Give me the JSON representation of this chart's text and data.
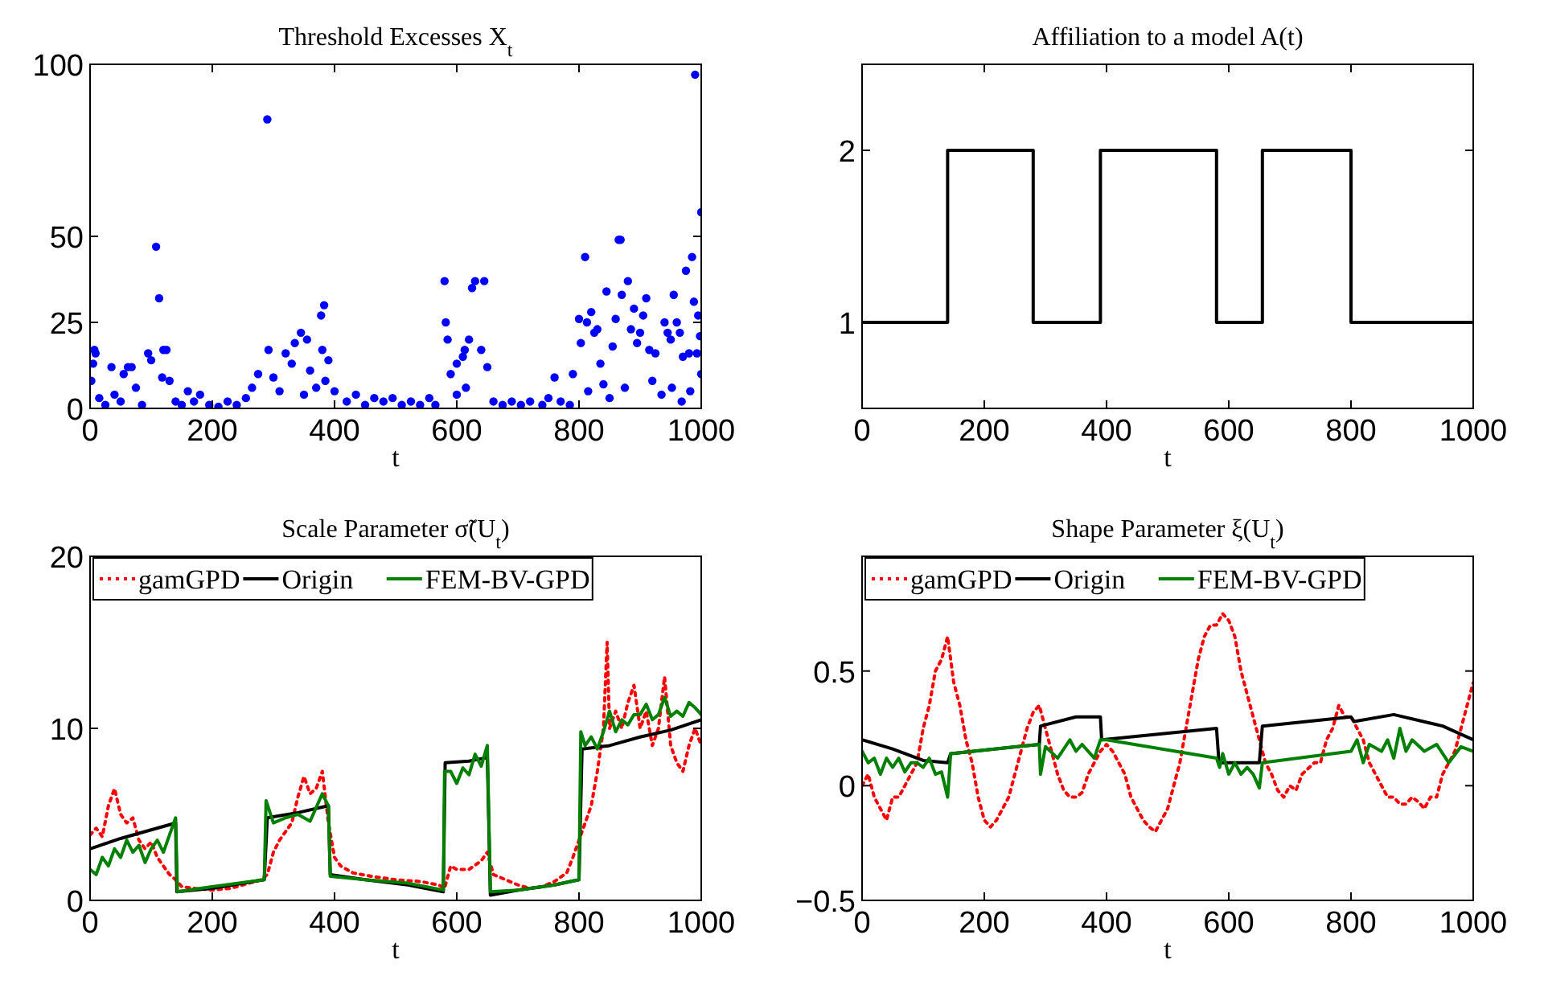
{
  "chart_data": [
    {
      "type": "scatter",
      "title": "Threshold Excesses X$_{t}$",
      "xlabel": "t",
      "xlim": [
        0,
        1000
      ],
      "xticks": [
        0,
        200,
        400,
        600,
        800,
        1000
      ],
      "ylim": [
        0,
        100
      ],
      "yticks": [
        0,
        25,
        50,
        100
      ],
      "marker": "circle",
      "series": [
        {
          "color": "#0000ff",
          "x": [
            2,
            5,
            7,
            9,
            35,
            55,
            62,
            68,
            95,
            100,
            108,
            113,
            118,
            120,
            125,
            130,
            160,
            180,
            265,
            275,
            290,
            292,
            300,
            320,
            330,
            335,
            345,
            355,
            360,
            378,
            383,
            380,
            390,
            385,
            580,
            582,
            585,
            590,
            600,
            610,
            613,
            620,
            625,
            630,
            640,
            645,
            650,
            760,
            790,
            800,
            803,
            810,
            813,
            820,
            825,
            830,
            835,
            845,
            855,
            860,
            865,
            868,
            870,
            880,
            885,
            890,
            895,
            900,
            905,
            910,
            915,
            925,
            940,
            945,
            950,
            955,
            960,
            965,
            970,
            975,
            980,
            985,
            988,
            990,
            993,
            995,
            998,
            1000,
            1000,
            15,
            25,
            40,
            50,
            75,
            85,
            140,
            150,
            170,
            195,
            210,
            225,
            240,
            255,
            310,
            350,
            370,
            400,
            420,
            435,
            450,
            465,
            480,
            495,
            510,
            525,
            540,
            555,
            565,
            600,
            615,
            660,
            675,
            690,
            705,
            720,
            740,
            750,
            770,
            785,
            815,
            840,
            850,
            875,
            920,
            935,
            952,
            968,
            982
          ],
          "values": [
            8,
            13,
            17,
            16,
            12,
            10,
            12,
            12,
            16,
            14,
            47,
            32,
            9,
            17,
            17,
            8,
            5,
            4,
            6,
            10,
            84,
            17,
            9,
            16,
            13,
            19,
            22,
            20,
            11,
            27,
            30,
            17,
            14,
            8,
            37,
            25,
            20,
            10,
            13,
            15,
            17,
            20,
            35,
            37,
            17,
            37,
            12,
            9,
            10,
            26,
            19,
            44,
            25,
            28,
            22,
            23,
            13,
            34,
            18,
            26,
            49,
            49,
            33,
            37,
            23,
            29,
            19,
            22,
            27,
            32,
            17,
            16,
            25,
            22,
            20,
            33,
            25,
            22,
            15,
            40,
            16,
            44,
            31,
            97,
            16,
            27,
            21,
            57,
            10,
            3,
            1,
            4,
            2,
            6,
            1,
            2,
            1,
            2,
            1,
            0.5,
            2,
            1,
            3,
            5,
            4,
            6,
            5,
            2,
            4,
            1,
            3,
            2,
            3,
            1,
            2,
            1,
            3,
            1,
            4,
            6,
            2,
            1,
            2,
            1,
            2,
            1,
            3,
            2,
            1,
            5,
            7,
            3,
            6,
            8,
            4,
            6,
            2,
            5
          ]
        }
      ]
    },
    {
      "type": "step",
      "title": "Affiliation to a model A(t)",
      "xlabel": "t",
      "xlim": [
        0,
        1000
      ],
      "xticks": [
        0,
        200,
        400,
        600,
        800,
        1000
      ],
      "ylim": [
        0.5,
        2.5
      ],
      "yticks": [
        1,
        2
      ],
      "series": [
        {
          "color": "#000000",
          "x": [
            0,
            140,
            280,
            390,
            580,
            655,
            800,
            1000
          ],
          "values": [
            1,
            2,
            1,
            2,
            1,
            2,
            1,
            1
          ]
        }
      ]
    },
    {
      "type": "line",
      "title": "Scale Parameter σ̃(U$_{t}$)",
      "xlabel": "t",
      "xlim": [
        0,
        1000
      ],
      "xticks": [
        0,
        200,
        400,
        600,
        800,
        1000
      ],
      "ylim": [
        0,
        20
      ],
      "yticks": [
        0,
        10,
        20
      ],
      "legend": "top",
      "series": [
        {
          "name": "gamGPD",
          "color": "#ff0000",
          "line_style": "dotted",
          "x": [
            0,
            10,
            20,
            30,
            40,
            50,
            60,
            70,
            80,
            90,
            100,
            110,
            120,
            130,
            140,
            150,
            170,
            200,
            230,
            260,
            280,
            290,
            300,
            310,
            320,
            330,
            340,
            350,
            360,
            370,
            380,
            390,
            400,
            410,
            430,
            460,
            500,
            540,
            570,
            580,
            590,
            600,
            620,
            640,
            650,
            660,
            680,
            700,
            720,
            740,
            760,
            780,
            790,
            800,
            810,
            820,
            830,
            840,
            846,
            850,
            860,
            870,
            880,
            890,
            900,
            910,
            920,
            930,
            940,
            950,
            960,
            970,
            980,
            990,
            1000
          ],
          "values": [
            3.8,
            4.2,
            3.7,
            5.5,
            6.5,
            5,
            4.5,
            4.8,
            3.5,
            3,
            3.4,
            2.5,
            2,
            1.5,
            1.2,
            0.8,
            0.7,
            0.6,
            0.7,
            1,
            1.2,
            1.5,
            2.8,
            3.5,
            4,
            4.5,
            6,
            7.2,
            6.2,
            6.5,
            7.5,
            4.5,
            2.5,
            2,
            1.6,
            1.4,
            1.2,
            1.1,
            0.9,
            0.7,
            2,
            1.8,
            1.8,
            2.3,
            2.8,
            1.5,
            1.2,
            0.9,
            0.7,
            0.8,
            1.1,
            1.6,
            2.5,
            3.5,
            4.5,
            5.5,
            7.5,
            10,
            15,
            10,
            11,
            10,
            11.5,
            12.5,
            10,
            11,
            9,
            10,
            13,
            9,
            8,
            7.5,
            9,
            10,
            9
          ]
        },
        {
          "name": "Origin",
          "color": "#000000",
          "line_style": "solid",
          "x": [
            0,
            50,
            100,
            140,
            142,
            200,
            285,
            290,
            340,
            390,
            393,
            450,
            520,
            578,
            581,
            620,
            650,
            655,
            700,
            760,
            800,
            805,
            850,
            900,
            950,
            1000
          ],
          "values": [
            3,
            3.6,
            4.1,
            4.5,
            0.5,
            0.7,
            1.2,
            4.8,
            5.1,
            5.5,
            1.5,
            1.2,
            0.9,
            0.5,
            8,
            8.1,
            8.3,
            0.3,
            0.6,
            0.9,
            1.2,
            8.8,
            9,
            9.5,
            9.9,
            10.5
          ]
        },
        {
          "name": "FEM-BV-GPD",
          "color": "#008000",
          "line_style": "solid",
          "x": [
            0,
            10,
            20,
            30,
            40,
            50,
            60,
            70,
            80,
            90,
            100,
            110,
            120,
            130,
            140,
            143,
            200,
            285,
            288,
            300,
            320,
            340,
            360,
            380,
            390,
            393,
            450,
            520,
            578,
            580,
            590,
            600,
            610,
            620,
            630,
            640,
            650,
            655,
            700,
            760,
            800,
            803,
            810,
            820,
            830,
            840,
            850,
            860,
            870,
            880,
            890,
            900,
            910,
            920,
            930,
            940,
            950,
            960,
            970,
            980,
            990,
            1000
          ],
          "values": [
            1.8,
            1.5,
            2.5,
            2,
            3,
            2.5,
            3.5,
            2.8,
            3.2,
            2.2,
            3,
            3.5,
            2.8,
            3.8,
            4.8,
            0.5,
            0.8,
            1.2,
            5.8,
            4.5,
            4.8,
            5,
            4.6,
            6.2,
            5.5,
            1.4,
            1.2,
            1,
            0.6,
            7.5,
            7.5,
            6.8,
            7.7,
            7.3,
            8.5,
            7.8,
            9,
            0.5,
            0.6,
            0.9,
            1.2,
            9.8,
            9,
            9.5,
            8.8,
            9.8,
            11,
            9.8,
            10.5,
            10.2,
            10.8,
            10.8,
            11.4,
            10.5,
            10.8,
            11.8,
            10.7,
            11,
            10.7,
            11.5,
            11.2,
            10.8
          ]
        }
      ]
    },
    {
      "type": "line",
      "title": "Shape Parameter ξ(U$_{t}$)",
      "xlabel": "t",
      "xlim": [
        0,
        1000
      ],
      "xticks": [
        0,
        200,
        400,
        600,
        800,
        1000
      ],
      "ylim": [
        -0.5,
        1
      ],
      "yticks": [
        {
          "value": -0.5,
          "label": "−0.5"
        },
        0,
        0.5
      ],
      "legend": "top",
      "series": [
        {
          "name": "gamGPD",
          "color": "#ff0000",
          "line_style": "dotted",
          "x": [
            0,
            10,
            20,
            30,
            40,
            50,
            60,
            70,
            80,
            90,
            100,
            110,
            120,
            130,
            140,
            150,
            160,
            170,
            180,
            190,
            200,
            210,
            220,
            230,
            240,
            250,
            260,
            270,
            280,
            290,
            300,
            310,
            320,
            330,
            340,
            350,
            360,
            370,
            380,
            390,
            400,
            410,
            420,
            430,
            440,
            450,
            460,
            470,
            480,
            490,
            500,
            510,
            520,
            530,
            540,
            550,
            560,
            570,
            580,
            590,
            600,
            610,
            620,
            630,
            640,
            650,
            660,
            670,
            680,
            690,
            700,
            710,
            720,
            740,
            750,
            760,
            770,
            780,
            790,
            800,
            810,
            820,
            830,
            840,
            850,
            860,
            870,
            880,
            890,
            900,
            910,
            920,
            930,
            940,
            950,
            960,
            970,
            980,
            990,
            1000
          ],
          "values": [
            0,
            0.05,
            -0.05,
            -0.1,
            -0.15,
            -0.05,
            -0.05,
            0,
            0.05,
            0.1,
            0.25,
            0.35,
            0.5,
            0.55,
            0.65,
            0.45,
            0.35,
            0.2,
            0.1,
            -0.05,
            -0.15,
            -0.18,
            -0.15,
            -0.1,
            -0.05,
            0.05,
            0.15,
            0.25,
            0.32,
            0.35,
            0.25,
            0.15,
            0.05,
            -0.02,
            -0.05,
            -0.05,
            -0.03,
            0.05,
            0.1,
            0.15,
            0.18,
            0.15,
            0.1,
            0.05,
            -0.05,
            -0.1,
            -0.15,
            -0.18,
            -0.2,
            -0.15,
            -0.1,
            0,
            0.1,
            0.25,
            0.4,
            0.55,
            0.65,
            0.7,
            0.7,
            0.75,
            0.72,
            0.65,
            0.5,
            0.4,
            0.3,
            0.2,
            0.1,
            0.05,
            -0.02,
            -0.05,
            0,
            -0.02,
            0.05,
            0.1,
            0.1,
            0.2,
            0.25,
            0.35,
            0.3,
            0.3,
            0.25,
            0.2,
            0.1,
            0.05,
            0,
            -0.05,
            -0.05,
            -0.08,
            -0.08,
            -0.05,
            -0.07,
            -0.1,
            -0.05,
            -0.05,
            0.05,
            0.1,
            0.15,
            0.25,
            0.35,
            0.45
          ]
        },
        {
          "name": "Origin",
          "color": "#000000",
          "line_style": "solid",
          "x": [
            0,
            50,
            100,
            140,
            145,
            290,
            292,
            350,
            390,
            392,
            580,
            584,
            650,
            655,
            800,
            805,
            870,
            950,
            1000
          ],
          "values": [
            0.2,
            0.16,
            0.11,
            0.1,
            0.14,
            0.18,
            0.26,
            0.3,
            0.3,
            0.2,
            0.25,
            0.1,
            0.1,
            0.26,
            0.3,
            0.28,
            0.31,
            0.26,
            0.2
          ]
        },
        {
          "name": "FEM-BV-GPD",
          "color": "#008000",
          "line_style": "solid",
          "x": [
            0,
            10,
            20,
            30,
            40,
            50,
            60,
            70,
            80,
            90,
            100,
            110,
            120,
            130,
            140,
            145,
            290,
            292,
            300,
            320,
            340,
            350,
            360,
            380,
            390,
            400,
            580,
            585,
            590,
            600,
            610,
            620,
            630,
            640,
            650,
            655,
            800,
            810,
            820,
            830,
            850,
            860,
            870,
            880,
            890,
            900,
            920,
            940,
            960,
            980,
            1000
          ],
          "values": [
            0.15,
            0.1,
            0.12,
            0.05,
            0.12,
            0.08,
            0.12,
            0.06,
            0.1,
            0.1,
            0.08,
            0.12,
            0.05,
            0.06,
            -0.05,
            0.14,
            0.18,
            0.05,
            0.17,
            0.12,
            0.2,
            0.15,
            0.18,
            0.12,
            0.2,
            0.2,
            0.12,
            0.08,
            0.14,
            0.05,
            0.1,
            0.05,
            0.08,
            0.05,
            -0.01,
            0.1,
            0.15,
            0.2,
            0.1,
            0.18,
            0.15,
            0.2,
            0.12,
            0.25,
            0.15,
            0.2,
            0.15,
            0.18,
            0.1,
            0.17,
            0.15
          ]
        }
      ]
    }
  ]
}
